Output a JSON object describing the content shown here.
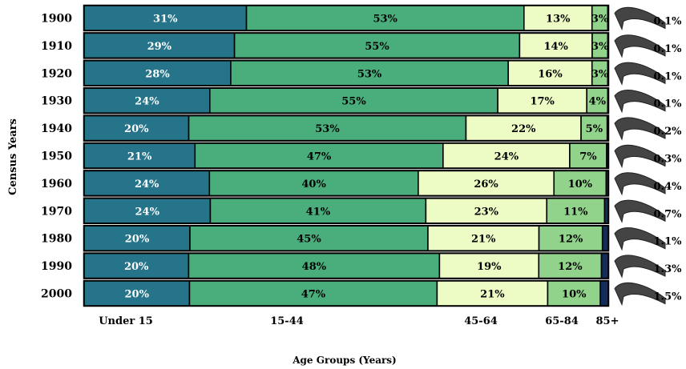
{
  "chart_data": {
    "type": "bar",
    "orientation": "horizontal",
    "stacked": true,
    "normalized": true,
    "title": "",
    "xlabel": "Age Groups (Years)",
    "ylabel": "Census Years",
    "categories": [
      "1900",
      "1910",
      "1920",
      "1930",
      "1940",
      "1950",
      "1960",
      "1970",
      "1980",
      "1990",
      "2000"
    ],
    "series": [
      {
        "name": "Under 15",
        "color": "#267489",
        "label_color": "#ffffff",
        "values": [
          31,
          29,
          28,
          24,
          20,
          21,
          24,
          24,
          20,
          20,
          20
        ],
        "labels": [
          "31%",
          "29%",
          "28%",
          "24%",
          "20%",
          "21%",
          "24%",
          "24%",
          "20%",
          "20%",
          "20%"
        ]
      },
      {
        "name": "15-44",
        "color": "#4aae7c",
        "label_color": "#000000",
        "values": [
          53,
          55,
          53,
          55,
          53,
          47,
          40,
          41,
          45,
          48,
          47
        ],
        "labels": [
          "53%",
          "55%",
          "53%",
          "55%",
          "53%",
          "47%",
          "40%",
          "41%",
          "45%",
          "48%",
          "47%"
        ]
      },
      {
        "name": "45-64",
        "color": "#edfbc5",
        "label_color": "#000000",
        "values": [
          13,
          14,
          16,
          17,
          22,
          24,
          26,
          23,
          21,
          19,
          21
        ],
        "labels": [
          "13%",
          "14%",
          "16%",
          "17%",
          "22%",
          "24%",
          "26%",
          "23%",
          "21%",
          "19%",
          "21%"
        ]
      },
      {
        "name": "65-84",
        "color": "#92d38c",
        "label_color": "#000000",
        "values": [
          3,
          3,
          3,
          4,
          5,
          7,
          10,
          11,
          12,
          12,
          10
        ],
        "labels": [
          "3%",
          "3%",
          "3%",
          "4%",
          "5%",
          "7%",
          "10%",
          "11%",
          "12%",
          "12%",
          "10%"
        ]
      },
      {
        "name": "85+",
        "color": "#132d5a",
        "label_color": "#000000",
        "values": [
          0.1,
          0.1,
          0.1,
          0.1,
          0.2,
          0.3,
          0.4,
          0.7,
          1.1,
          1.3,
          1.5
        ],
        "labels": [
          "0.1%",
          "0.1%",
          "0.1%",
          "0.1%",
          "0.2%",
          "0.3%",
          "0.4%",
          "0.7%",
          "1.1%",
          "1.3%",
          "1.5%"
        ]
      }
    ],
    "category_axis_labels": [
      "Under 15",
      "15-44",
      "45-64",
      "65-84",
      "85+"
    ],
    "xlim": [
      0,
      100
    ],
    "grid": false,
    "legend": "none",
    "annotations": "85+ share shown by arrow callouts beside each bar"
  }
}
